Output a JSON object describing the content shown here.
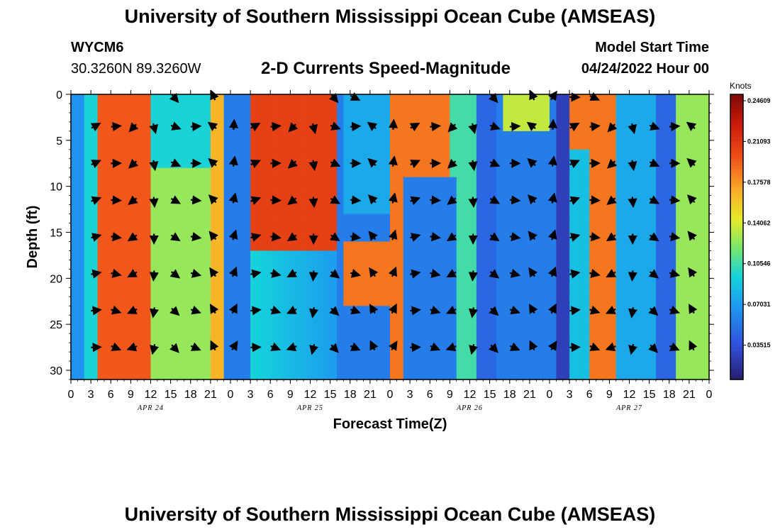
{
  "header": {
    "title": "University of Southern Mississippi Ocean Cube (AMSEAS)",
    "station_id": "WYCM6",
    "coordinates": "30.3260N  89.3260W",
    "subtitle": "2-D Currents Speed-Magnitude",
    "model_start_label": "Model Start Time",
    "model_start_value": "04/24/2022 Hour 00"
  },
  "footer": {
    "title": "University of Southern Mississippi Ocean Cube (AMSEAS)"
  },
  "chart_data": {
    "type": "heatmap",
    "title": "2-D Currents Speed-Magnitude",
    "xlabel": "Forecast Time(Z)",
    "ylabel": "Depth (ft)",
    "x_hours": [
      0,
      96
    ],
    "ylim": [
      0,
      31
    ],
    "x_tick_labels": [
      "0",
      "3",
      "6",
      "9",
      "12",
      "15",
      "18",
      "21",
      "0",
      "3",
      "6",
      "9",
      "12",
      "15",
      "18",
      "21",
      "0",
      "3",
      "6",
      "9",
      "12",
      "15",
      "18",
      "21",
      "0",
      "3",
      "6",
      "9",
      "12",
      "15",
      "18",
      "21",
      "0"
    ],
    "day_labels": [
      "APR 24",
      "APR 25",
      "APR 26",
      "APR 27"
    ],
    "y_ticks": [
      0,
      5,
      10,
      15,
      20,
      25,
      30
    ],
    "colorbar": {
      "unit": "Knots",
      "min": 0.0,
      "max": 0.2461,
      "tick_labels": [
        "0.24609",
        "0.21093",
        "0.17578",
        "0.14062",
        "0.10546",
        "0.07031",
        "0.03515"
      ],
      "tick_values": [
        0.24609,
        0.21093,
        0.17578,
        0.14062,
        0.10546,
        0.07031,
        0.03515
      ]
    },
    "vector_depths": [
      3.5,
      7.5,
      11.5,
      15.5,
      19.5,
      23.5,
      27.5
    ],
    "vector_hours": [
      0,
      3,
      6,
      9,
      12,
      15,
      18,
      21,
      24,
      27,
      30,
      33,
      36,
      39,
      42,
      45,
      48,
      51,
      54,
      57,
      60,
      63,
      66,
      69,
      72,
      75,
      78,
      81,
      84,
      87,
      90,
      93,
      96
    ],
    "surface_vector_hours": [
      15,
      21,
      39,
      42,
      63,
      69,
      72,
      75,
      78
    ],
    "speed_profile_description": "Estimated speed (knots) by time column segment",
    "speed_segments": [
      {
        "from": 0,
        "to": 2,
        "speed": 0.06
      },
      {
        "from": 2,
        "to": 4,
        "speed": 0.09
      },
      {
        "from": 4,
        "to": 12,
        "speed": 0.19
      },
      {
        "from": 12,
        "to": 21,
        "speed": 0.12
      },
      {
        "from": 21,
        "to": 23,
        "speed": 0.16
      },
      {
        "from": 23,
        "to": 27,
        "speed": 0.05
      },
      {
        "from": 27,
        "to": 40,
        "speed": 0.2
      },
      {
        "from": 40,
        "to": 48,
        "speed": 0.05
      },
      {
        "from": 48,
        "to": 57,
        "speed": 0.18
      },
      {
        "from": 57,
        "to": 61,
        "speed": 0.1
      },
      {
        "from": 61,
        "to": 64,
        "speed": 0.04
      },
      {
        "from": 64,
        "to": 73,
        "speed": 0.05
      },
      {
        "from": 73,
        "to": 75,
        "speed": 0.02
      },
      {
        "from": 75,
        "to": 78,
        "speed": 0.08
      },
      {
        "from": 78,
        "to": 82,
        "speed": 0.18
      },
      {
        "from": 82,
        "to": 88,
        "speed": 0.07
      },
      {
        "from": 88,
        "to": 91,
        "speed": 0.04
      },
      {
        "from": 91,
        "to": 96,
        "speed": 0.12
      }
    ]
  }
}
